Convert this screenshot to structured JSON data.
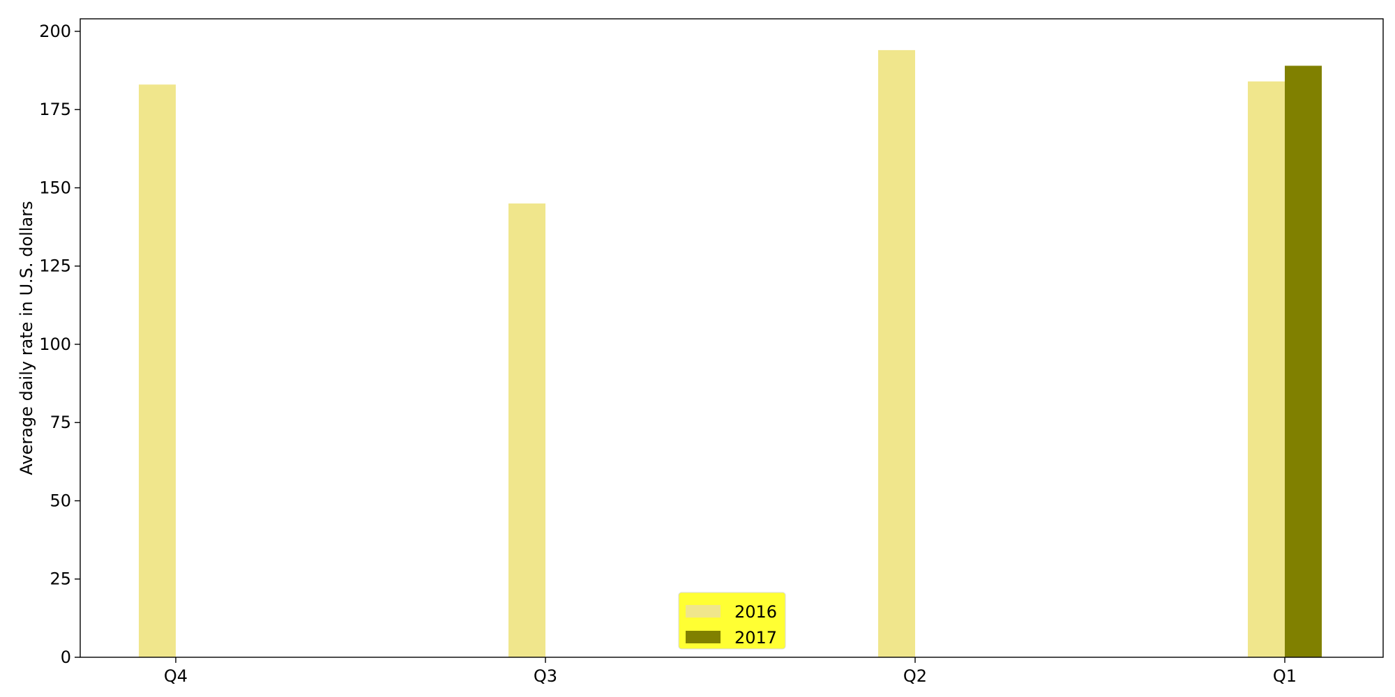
{
  "chart_data": {
    "type": "bar",
    "title": "",
    "xlabel": "",
    "ylabel": "Average daily rate in U.S. dollars",
    "categories": [
      "Q4",
      "Q3",
      "Q2",
      "Q1"
    ],
    "series": [
      {
        "name": "2016",
        "color": "#F0E68C",
        "values": [
          183,
          145,
          194,
          184
        ]
      },
      {
        "name": "2017",
        "color": "#808000",
        "values": [
          null,
          null,
          null,
          189
        ]
      }
    ],
    "ylim": [
      0,
      204
    ],
    "yticks": [
      0,
      25,
      50,
      75,
      100,
      125,
      150,
      175,
      200
    ],
    "grid": false,
    "legend": {
      "position": "bottom-center",
      "background": "#FFFF33"
    }
  }
}
